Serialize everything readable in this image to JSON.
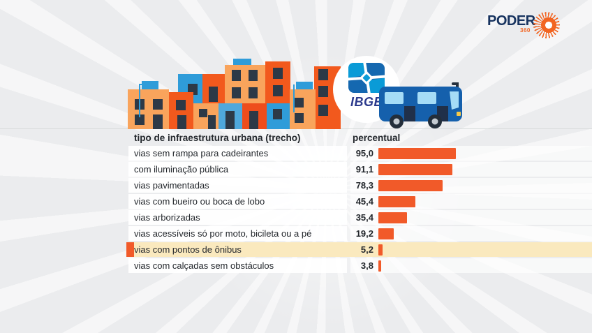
{
  "brand": {
    "name": "PODER",
    "sub": "360",
    "navy": "#17335F",
    "orange": "#F26522"
  },
  "logos": {
    "ibge_label": "IBGE"
  },
  "chart_data": {
    "type": "bar",
    "orientation": "horizontal",
    "header": {
      "category_col": "tipo de infraestrutura urbana (trecho)",
      "value_col": "percentual"
    },
    "categories": [
      "vias sem rampa para cadeirantes",
      "com iluminação pública",
      "vias pavimentadas",
      "vias com bueiro ou boca de lobo",
      "vias arborizadas",
      "vias acessíveis só por moto, bicileta ou a pé",
      "vias com pontos de ônibus",
      "vias com calçadas sem obstáculos"
    ],
    "values": [
      95.0,
      91.1,
      78.3,
      45.4,
      35.4,
      19.2,
      5.2,
      3.8
    ],
    "value_labels": [
      "95,0",
      "91,1",
      "78,3",
      "45,4",
      "35,4",
      "19,2",
      "5,2",
      "3,8"
    ],
    "highlighted_index": 6,
    "highlighted_category": "vias com pontos de ônibus",
    "xlim": [
      0,
      100
    ],
    "grid": false,
    "legend": false,
    "bar_color": "#F15A29",
    "highlight_bg": "#FAE9BE"
  }
}
